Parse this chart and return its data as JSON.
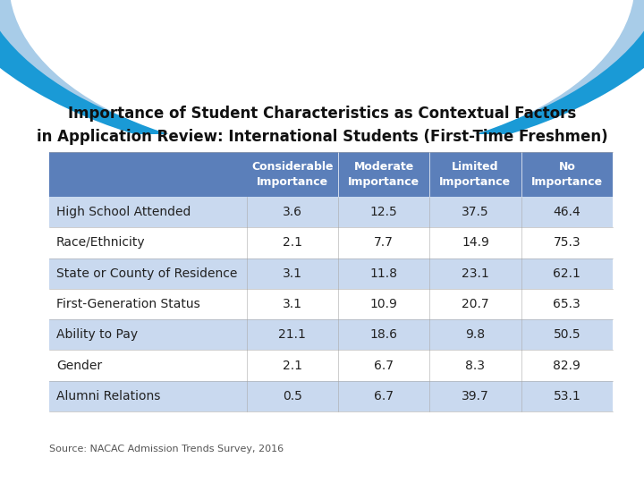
{
  "title_line1": "Importance of Student Characteristics as Contextual Factors",
  "title_line2": "in Application Review: International Students (First-Time Freshmen)",
  "col_headers": [
    "Considerable\nImportance",
    "Moderate\nImportance",
    "Limited\nImportance",
    "No\nImportance"
  ],
  "row_labels": [
    "High School Attended",
    "Race/Ethnicity",
    "State or County of Residence",
    "First-Generation Status",
    "Ability to Pay",
    "Gender",
    "Alumni Relations"
  ],
  "table_data": [
    [
      3.6,
      12.5,
      37.5,
      46.4
    ],
    [
      2.1,
      7.7,
      14.9,
      75.3
    ],
    [
      3.1,
      11.8,
      23.1,
      62.1
    ],
    [
      3.1,
      10.9,
      20.7,
      65.3
    ],
    [
      21.1,
      18.6,
      9.8,
      50.5
    ],
    [
      2.1,
      6.7,
      8.3,
      82.9
    ],
    [
      0.5,
      6.7,
      39.7,
      53.1
    ]
  ],
  "header_bg_color": "#5b7fba",
  "header_text_color": "#ffffff",
  "row_even_color": "#c9d9ef",
  "row_odd_color": "#ffffff",
  "row_text_color": "#222222",
  "label_text_color": "#222222",
  "source_text": "Source: NACAC Admission Trends Survey, 2016",
  "bg_color": "#ffffff",
  "arc_bright_blue": "#1a9ad6",
  "arc_light_blue": "#a8cce8",
  "title_fontsize": 12,
  "cell_fontsize": 10,
  "header_fontsize": 9,
  "source_fontsize": 8
}
